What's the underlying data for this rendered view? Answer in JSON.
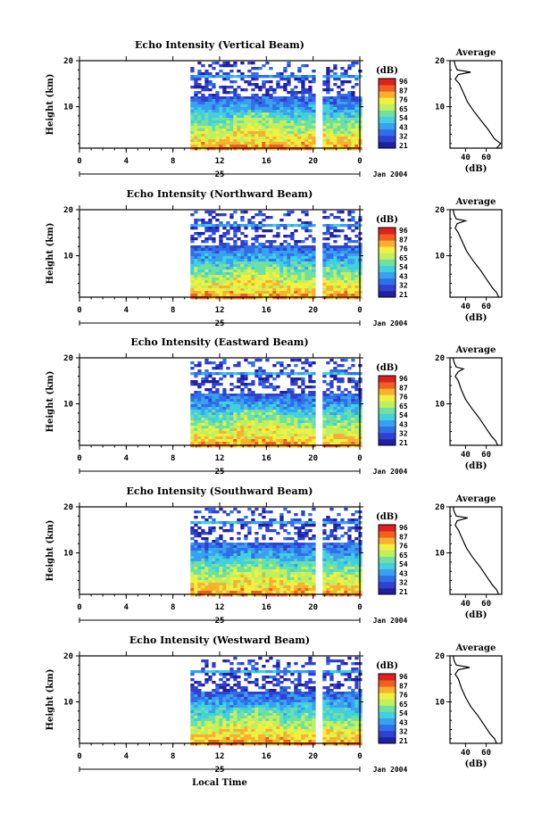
{
  "figure": {
    "xlabel": "Local Time",
    "date_label": "Jan 2004",
    "day_label": "25",
    "colorbar_unit": "(dB)",
    "colorbar_ticks": [
      "96",
      "87",
      "76",
      "65",
      "54",
      "43",
      "32",
      "21"
    ],
    "colors": [
      "#2020a0",
      "#3040d0",
      "#2f6fe8",
      "#3aa0f0",
      "#40d0e0",
      "#70e0a0",
      "#c0f060",
      "#f0f040",
      "#f8b030",
      "#f06020",
      "#e02020"
    ],
    "avg_title": "Average",
    "avg_xlabel": "(dB)"
  },
  "chart_data": [
    {
      "type": "heatmap",
      "title": "Echo Intensity (Vertical Beam)",
      "ylabel": "Height (km)",
      "x_ticks": [
        "0",
        "4",
        "8",
        "12",
        "16",
        "20",
        "0"
      ],
      "y_ticks": [
        "20",
        "10"
      ],
      "ylim": [
        1,
        20
      ],
      "xlim": [
        0,
        24
      ],
      "data_start_hour": 9.5,
      "gap_hours": [
        20.3,
        20.8
      ],
      "average": {
        "x_ticks": [
          "40",
          "60"
        ],
        "y_ticks": [
          "20",
          "10"
        ],
        "xlim": [
          25,
          75
        ],
        "profile": [
          [
            70,
            1
          ],
          [
            74,
            2
          ],
          [
            68,
            3
          ],
          [
            62,
            5
          ],
          [
            55,
            7
          ],
          [
            48,
            9
          ],
          [
            42,
            11
          ],
          [
            38,
            13
          ],
          [
            34,
            15
          ],
          [
            30,
            16
          ],
          [
            33,
            17
          ],
          [
            45,
            17.5
          ],
          [
            32,
            18
          ],
          [
            30,
            19
          ],
          [
            29,
            20
          ]
        ]
      }
    },
    {
      "type": "heatmap",
      "title": "Echo Intensity (Northward Beam)",
      "ylabel": "Height (km)",
      "x_ticks": [
        "0",
        "4",
        "8",
        "12",
        "16",
        "20",
        "0"
      ],
      "y_ticks": [
        "20",
        "10"
      ],
      "ylim": [
        1,
        20
      ],
      "xlim": [
        0,
        24
      ],
      "data_start_hour": 9.5,
      "gap_hours": [
        20.3,
        20.8
      ],
      "average": {
        "x_ticks": [
          "40",
          "60"
        ],
        "y_ticks": [
          "20",
          "10"
        ],
        "xlim": [
          25,
          75
        ],
        "profile": [
          [
            72,
            1
          ],
          [
            70,
            2
          ],
          [
            66,
            3
          ],
          [
            60,
            5
          ],
          [
            54,
            7
          ],
          [
            47,
            9
          ],
          [
            41,
            11
          ],
          [
            37,
            13
          ],
          [
            33,
            15
          ],
          [
            30,
            16
          ],
          [
            32,
            17
          ],
          [
            40,
            17.6
          ],
          [
            31,
            18
          ],
          [
            29,
            19
          ],
          [
            28,
            20
          ]
        ]
      }
    },
    {
      "type": "heatmap",
      "title": "Echo Intensity (Eastward Beam)",
      "ylabel": "Height (km)",
      "x_ticks": [
        "0",
        "4",
        "8",
        "12",
        "16",
        "20",
        "0"
      ],
      "y_ticks": [
        "20",
        "10"
      ],
      "ylim": [
        1,
        20
      ],
      "xlim": [
        0,
        24
      ],
      "data_start_hour": 9.5,
      "gap_hours": [
        20.3,
        20.8
      ],
      "average": {
        "x_ticks": [
          "40",
          "60"
        ],
        "y_ticks": [
          "20",
          "10"
        ],
        "xlim": [
          25,
          75
        ],
        "profile": [
          [
            71,
            1
          ],
          [
            69,
            2
          ],
          [
            65,
            3
          ],
          [
            59,
            5
          ],
          [
            53,
            7
          ],
          [
            46,
            9
          ],
          [
            40,
            11
          ],
          [
            36,
            13
          ],
          [
            33,
            15
          ],
          [
            30,
            16
          ],
          [
            33,
            17
          ],
          [
            38,
            17.6
          ],
          [
            31,
            18
          ],
          [
            29,
            19
          ],
          [
            28,
            20
          ]
        ]
      }
    },
    {
      "type": "heatmap",
      "title": "Echo Intensity (Southward Beam)",
      "ylabel": "Height (km)",
      "x_ticks": [
        "0",
        "4",
        "8",
        "12",
        "16",
        "20",
        "0"
      ],
      "y_ticks": [
        "20",
        "10"
      ],
      "ylim": [
        1,
        20
      ],
      "xlim": [
        0,
        24
      ],
      "data_start_hour": 9.5,
      "gap_hours": [
        20.3,
        20.8
      ],
      "average": {
        "x_ticks": [
          "40",
          "60"
        ],
        "y_ticks": [
          "20",
          "10"
        ],
        "xlim": [
          25,
          75
        ],
        "profile": [
          [
            72,
            1
          ],
          [
            70,
            2
          ],
          [
            66,
            3
          ],
          [
            60,
            5
          ],
          [
            54,
            7
          ],
          [
            47,
            9
          ],
          [
            41,
            11
          ],
          [
            37,
            13
          ],
          [
            33,
            15
          ],
          [
            30,
            16
          ],
          [
            32,
            17
          ],
          [
            42,
            17.6
          ],
          [
            31,
            18
          ],
          [
            29,
            19
          ],
          [
            28,
            20
          ]
        ]
      }
    },
    {
      "type": "heatmap",
      "title": "Echo Intensity (Westward Beam)",
      "ylabel": "Height (km)",
      "x_ticks": [
        "0",
        "4",
        "8",
        "12",
        "16",
        "20",
        "0"
      ],
      "y_ticks": [
        "20",
        "10"
      ],
      "ylim": [
        1,
        20
      ],
      "xlim": [
        0,
        24
      ],
      "data_start_hour": 9.5,
      "gap_hours": [
        20.3,
        20.8
      ],
      "average": {
        "x_ticks": [
          "40",
          "60"
        ],
        "y_ticks": [
          "20",
          "10"
        ],
        "xlim": [
          25,
          75
        ],
        "profile": [
          [
            70,
            1
          ],
          [
            68,
            2
          ],
          [
            64,
            3
          ],
          [
            58,
            5
          ],
          [
            52,
            7
          ],
          [
            45,
            9
          ],
          [
            40,
            11
          ],
          [
            36,
            13
          ],
          [
            33,
            15
          ],
          [
            30,
            16
          ],
          [
            33,
            17
          ],
          [
            44,
            17.5
          ],
          [
            31,
            18
          ],
          [
            29,
            19
          ],
          [
            28,
            20
          ]
        ]
      }
    }
  ]
}
